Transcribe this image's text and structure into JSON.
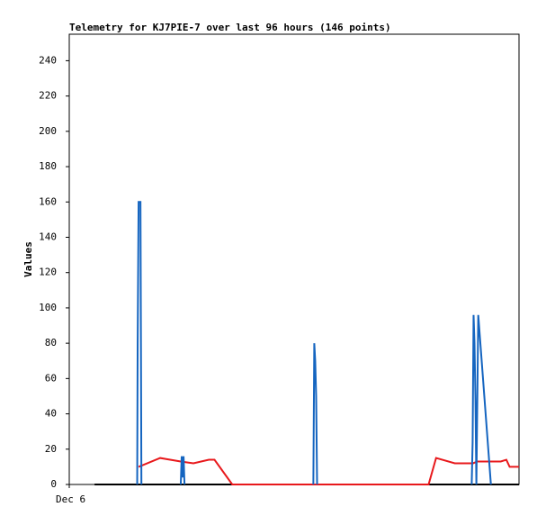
{
  "chart_data": {
    "type": "line",
    "title": "Telemetry for KJ7PIE-7 over last 96 hours (146 points)",
    "y_label": "Values",
    "xlim": [
      0,
      96
    ],
    "xticks": [
      {
        "value": 0,
        "label": "Dec 6"
      }
    ],
    "ylim": [
      0,
      255
    ],
    "yticks": [
      0,
      20,
      40,
      60,
      80,
      100,
      120,
      140,
      160,
      180,
      200,
      220,
      240
    ],
    "series": [
      {
        "color": "#000000",
        "x": [
          5.4,
          96
        ],
        "values": [
          0,
          0
        ]
      },
      {
        "color": "#e8191c",
        "x": [
          14.8,
          19.4,
          23.8,
          26.5,
          29.8,
          31.0,
          34.8,
          76.7,
          78.3,
          82.3,
          86.2,
          87.1,
          90.6,
          92.1,
          93.3,
          94.0,
          96.0
        ],
        "values": [
          10,
          15,
          13,
          12,
          14,
          14,
          0,
          0,
          15,
          12,
          12,
          13,
          13,
          13,
          14,
          10,
          10
        ]
      },
      {
        "color": "#1565c0",
        "x": [
          14.5,
          14.6,
          14.8,
          15.2,
          15.4,
          19.0,
          23.8,
          24.0,
          24.2,
          24.4,
          24.6,
          40.0,
          52.1,
          52.3,
          52.5,
          52.7,
          52.9,
          70.0,
          85.9,
          86.1,
          86.3,
          86.5,
          86.7,
          86.9,
          87.3,
          90.0
        ],
        "values": [
          0,
          80,
          160,
          160,
          0,
          null,
          0,
          16,
          4,
          16,
          0,
          null,
          0,
          80,
          70,
          50,
          0,
          null,
          0,
          24,
          96,
          80,
          48,
          0,
          96,
          0
        ]
      }
    ]
  }
}
